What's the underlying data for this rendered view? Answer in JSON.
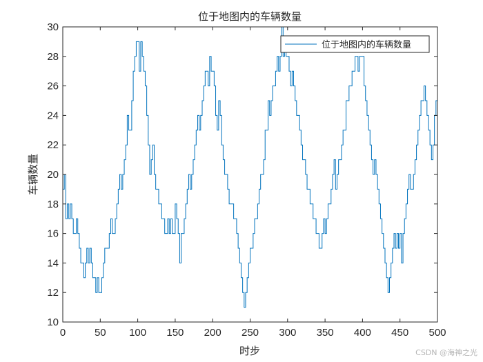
{
  "figure": {
    "watermark": "CSDN @海神之光"
  },
  "colors": {
    "line": "#0072BD",
    "axis": "#262626",
    "background": "#ffffff"
  },
  "chart_data": {
    "type": "line",
    "style": "stairs",
    "title": "位于地图内的车辆数量",
    "xlabel": "时步",
    "ylabel": "车辆数量",
    "xlim": [
      0,
      500
    ],
    "ylim": [
      10,
      30
    ],
    "xticks": [
      0,
      50,
      100,
      150,
      200,
      250,
      300,
      350,
      400,
      450,
      500
    ],
    "yticks": [
      10,
      12,
      14,
      16,
      18,
      20,
      22,
      24,
      26,
      28,
      30
    ],
    "grid": false,
    "legend": {
      "position": "northeast",
      "entries": [
        "位于地图内的车辆数量"
      ]
    },
    "series": [
      {
        "name": "位于地图内的车辆数量",
        "x_step": 2,
        "x_start": 0,
        "values": [
          19,
          20,
          17,
          18,
          17,
          18,
          17,
          16,
          16,
          17,
          16,
          15,
          14,
          14,
          13,
          14,
          15,
          14,
          15,
          14,
          13,
          13,
          12,
          13,
          12,
          12,
          13,
          14,
          15,
          15,
          15,
          16,
          17,
          16,
          16,
          17,
          18,
          19,
          20,
          19,
          20,
          21,
          22,
          24,
          23,
          23,
          25,
          27,
          28,
          29,
          29,
          27,
          29,
          28,
          27,
          26,
          24,
          22,
          20,
          21,
          22,
          20,
          19,
          19,
          18,
          18,
          17,
          17,
          16,
          16,
          17,
          16,
          17,
          16,
          16,
          18,
          17,
          16,
          14,
          16,
          16,
          17,
          18,
          19,
          20,
          19,
          20,
          21,
          22,
          23,
          24,
          23,
          24,
          25,
          26,
          27,
          27,
          26,
          28,
          27,
          27,
          26,
          24,
          23,
          25,
          24,
          22,
          21,
          20,
          20,
          19,
          18,
          18,
          18,
          17,
          17,
          16,
          15,
          14,
          13,
          12,
          11,
          12,
          13,
          14,
          15,
          15,
          16,
          17,
          17,
          18,
          19,
          20,
          20,
          21,
          23,
          23,
          25,
          24,
          25,
          26,
          26,
          27,
          28,
          27,
          28,
          30,
          28,
          29,
          28,
          28,
          27,
          26,
          27,
          26,
          25,
          24,
          24,
          23,
          22,
          21,
          21,
          20,
          19,
          19,
          18,
          18,
          17,
          17,
          16,
          16,
          15,
          15,
          16,
          17,
          16,
          17,
          18,
          18,
          19,
          20,
          21,
          19,
          20,
          21,
          21,
          22,
          23,
          23,
          25,
          25,
          26,
          26,
          27,
          27,
          28,
          28,
          27,
          28,
          28,
          28,
          26,
          25,
          24,
          23,
          22,
          21,
          20,
          21,
          20,
          19,
          18,
          17,
          16,
          15,
          14,
          13,
          12,
          13,
          14,
          15,
          16,
          15,
          16,
          15,
          16,
          14,
          16,
          17,
          18,
          19,
          20,
          19,
          19,
          20,
          21,
          22,
          23,
          24,
          25,
          25,
          26,
          25,
          24,
          23,
          22,
          21,
          22,
          24,
          25,
          26
        ]
      }
    ]
  }
}
